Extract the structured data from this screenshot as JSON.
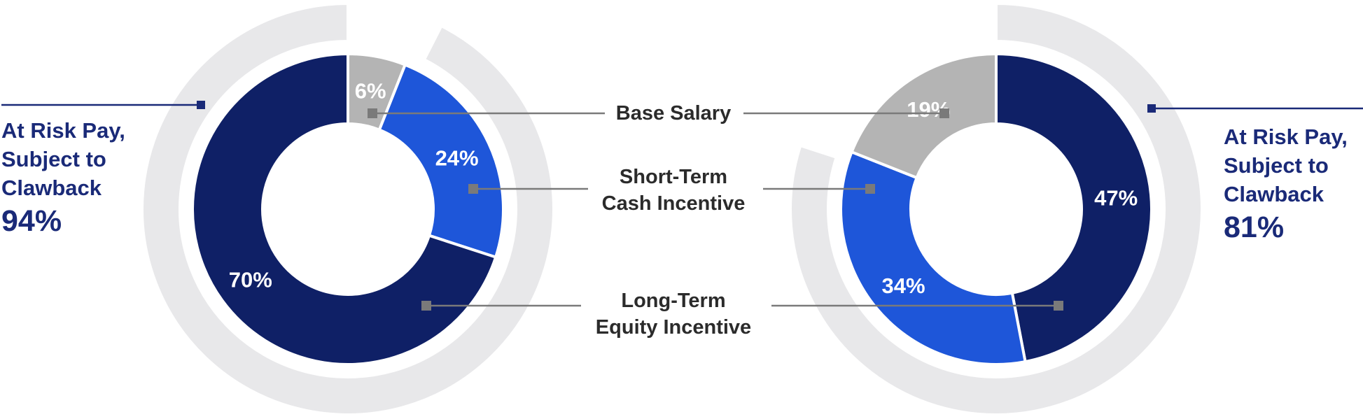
{
  "colors": {
    "navy": "#0f2066",
    "blue": "#1e56d9",
    "gray": "#b4b4b4",
    "ring": "#e8e8ea",
    "connector": "#7a7a7a",
    "accent_text": "#1a2a78",
    "label_text": "#2b2b2b",
    "segment_label_text": "#ffffff"
  },
  "legend": {
    "items": [
      {
        "id": "base-salary",
        "lines": [
          "Base Salary",
          ""
        ]
      },
      {
        "id": "short-term-cash-incentive",
        "lines": [
          "Short-Term",
          "Cash Incentive"
        ]
      },
      {
        "id": "long-term-equity-incentive",
        "lines": [
          "Long-Term",
          "Equity Incentive"
        ]
      }
    ]
  },
  "chart_data": [
    {
      "type": "donut",
      "position": "left",
      "at_risk": {
        "lines": [
          "At Risk Pay,",
          "Subject to",
          "Clawback"
        ],
        "value": "94%",
        "percent": 94
      },
      "segments": [
        {
          "category": "Base Salary",
          "percent": 6,
          "label": "6%",
          "color_key": "gray"
        },
        {
          "category": "Short-Term Cash Incentive",
          "percent": 24,
          "label": "24%",
          "color_key": "blue"
        },
        {
          "category": "Long-Term Equity Incentive",
          "percent": 70,
          "label": "70%",
          "color_key": "navy"
        }
      ]
    },
    {
      "type": "donut",
      "position": "right",
      "at_risk": {
        "lines": [
          "At Risk Pay,",
          "Subject to",
          "Clawback"
        ],
        "value": "81%",
        "percent": 81
      },
      "segments": [
        {
          "category": "Long-Term Equity Incentive",
          "percent": 47,
          "label": "47%",
          "color_key": "navy"
        },
        {
          "category": "Short-Term Cash Incentive",
          "percent": 34,
          "label": "34%",
          "color_key": "blue"
        },
        {
          "category": "Base Salary",
          "percent": 19,
          "label": "19%",
          "color_key": "gray"
        }
      ]
    }
  ]
}
